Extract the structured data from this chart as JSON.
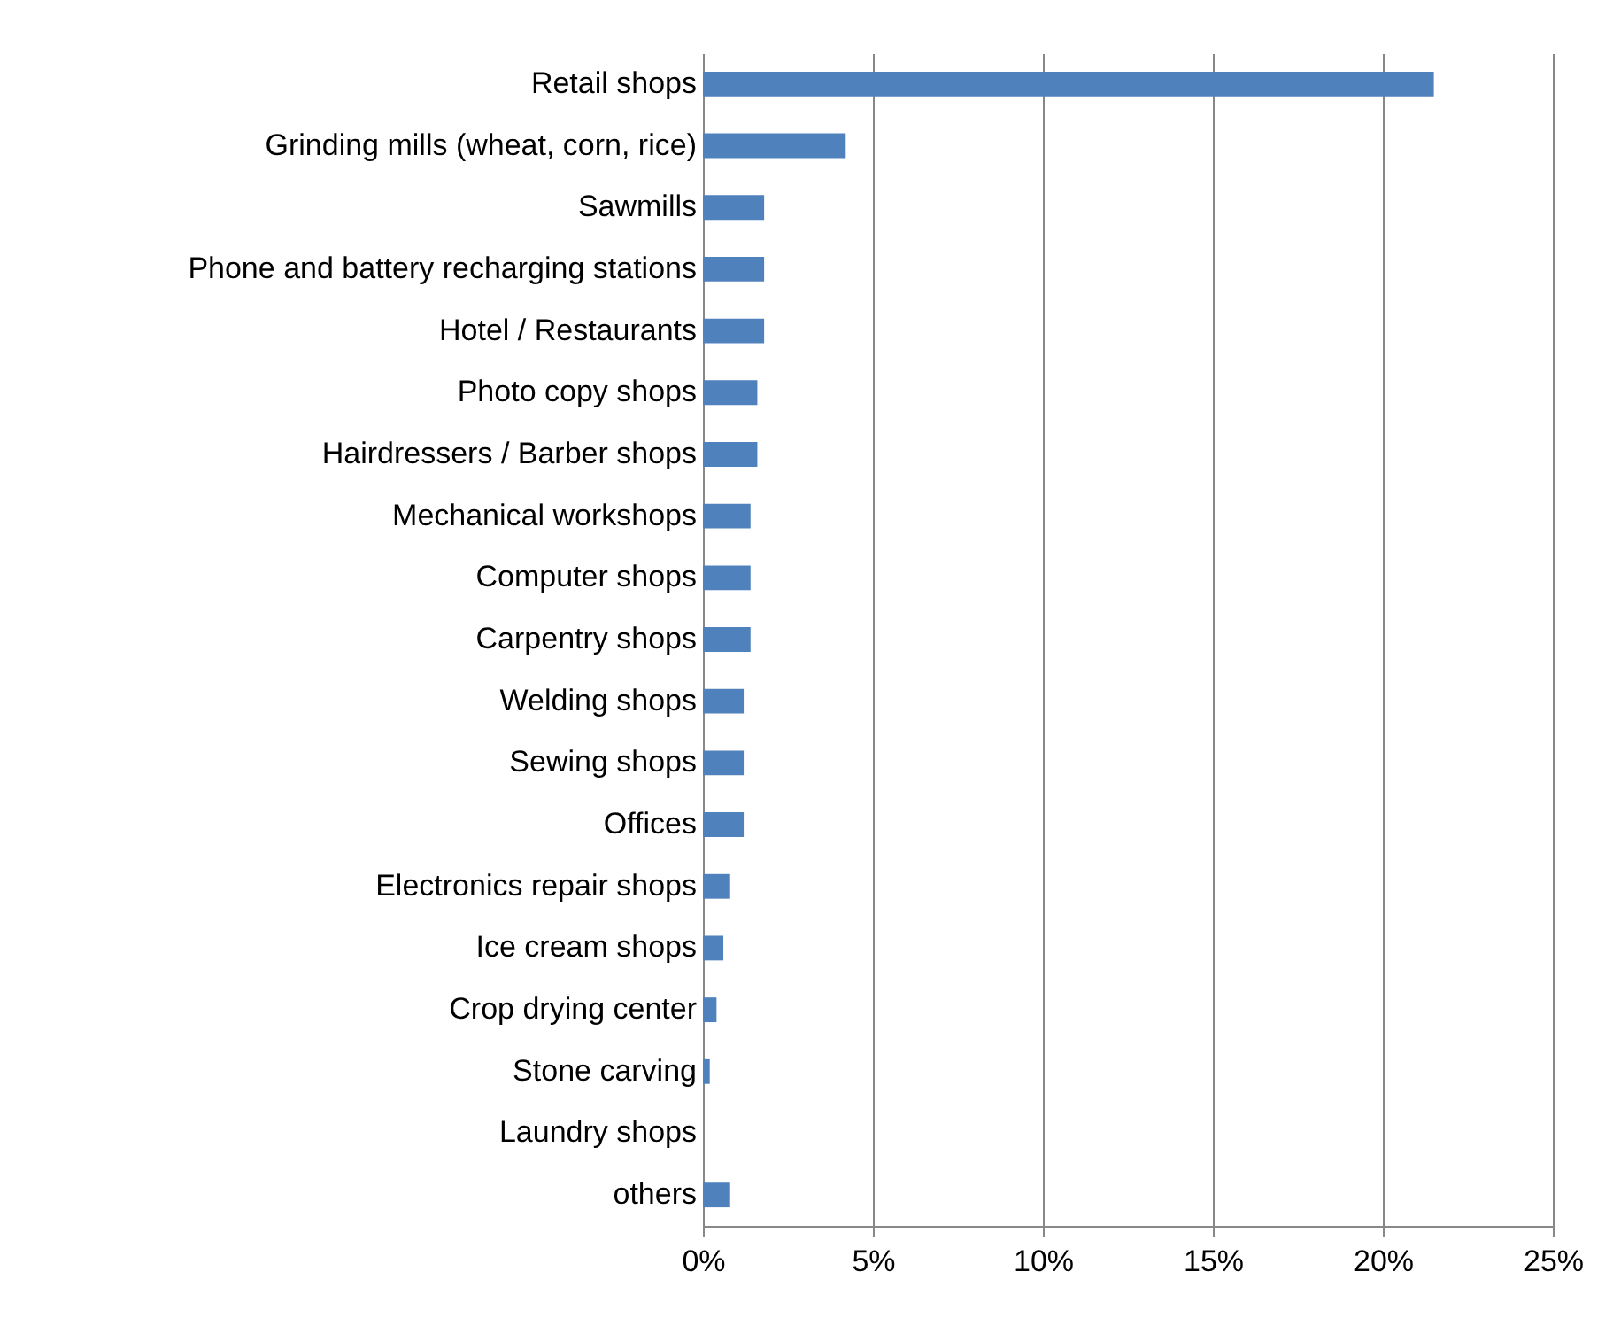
{
  "chart_data": {
    "type": "bar",
    "orientation": "horizontal",
    "categories": [
      "Retail shops",
      "Grinding mills (wheat, corn, rice)",
      "Sawmills",
      "Phone and battery recharging stations",
      "Hotel / Restaurants",
      "Photo copy shops",
      "Hairdressers / Barber shops",
      "Mechanical workshops",
      "Computer shops",
      "Carpentry shops",
      "Welding shops",
      "Sewing shops",
      "Offices",
      "Electronics repair shops",
      "Ice cream shops",
      "Crop drying center",
      "Stone carving",
      "Laundry shops",
      "others"
    ],
    "values": [
      21.5,
      4.2,
      1.8,
      1.8,
      1.8,
      1.6,
      1.6,
      1.4,
      1.4,
      1.4,
      1.2,
      1.2,
      1.2,
      0.8,
      0.6,
      0.4,
      0.2,
      0,
      0.8
    ],
    "color": "#4f81bd",
    "xlim": [
      0,
      25
    ],
    "xticks": [
      {
        "value": 0,
        "label": "0%"
      },
      {
        "value": 5,
        "label": "5%"
      },
      {
        "value": 10,
        "label": "10%"
      },
      {
        "value": 15,
        "label": "15%"
      },
      {
        "value": 20,
        "label": "20%"
      },
      {
        "value": 25,
        "label": "25%"
      }
    ],
    "grid": "x"
  }
}
